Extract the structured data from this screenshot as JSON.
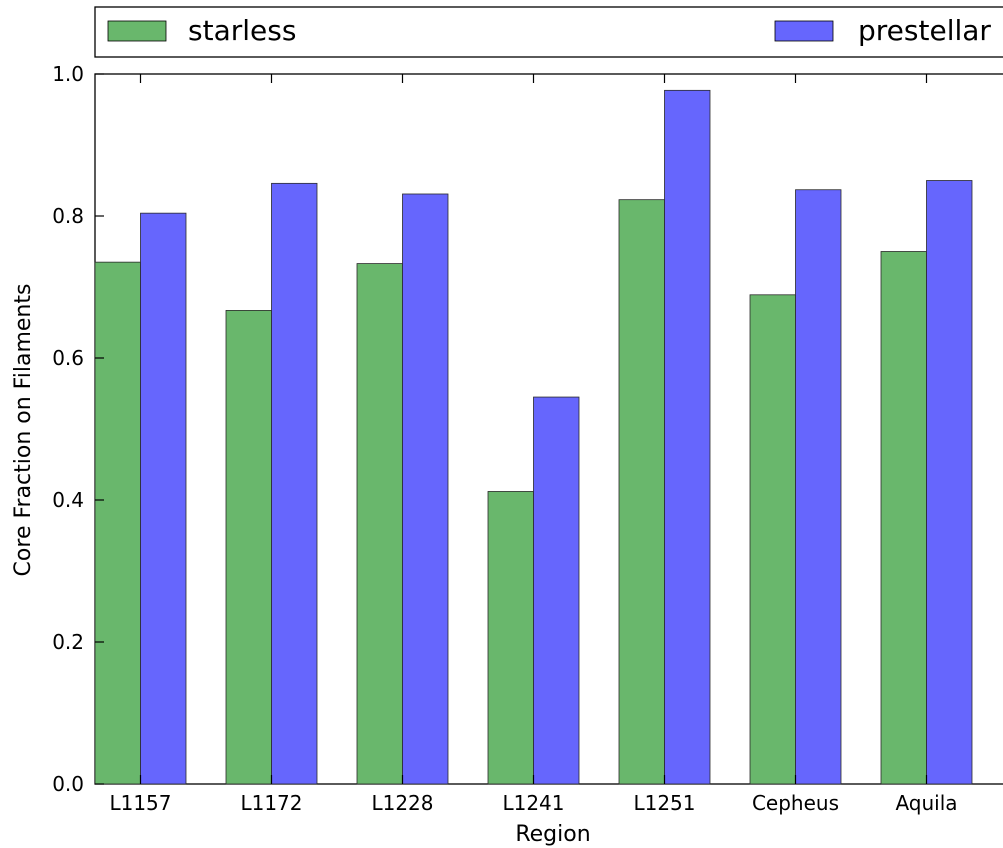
{
  "chart_data": {
    "type": "bar",
    "title": "",
    "xlabel": "Region",
    "ylabel": "Core Fraction on Filaments",
    "categories": [
      "L1157",
      "L1172",
      "L1228",
      "L1241",
      "L1251",
      "Cepheus",
      "Aquila"
    ],
    "series": [
      {
        "name": "starless",
        "color": "#69b76c",
        "values": [
          0.735,
          0.667,
          0.733,
          0.412,
          0.823,
          0.689,
          0.75
        ]
      },
      {
        "name": "prestellar",
        "color": "#6666fd",
        "values": [
          0.804,
          0.846,
          0.831,
          0.545,
          0.977,
          0.837,
          0.85
        ]
      }
    ],
    "ylim": [
      0,
      1.0
    ],
    "yticks": [
      "0.0",
      "0.2",
      "0.4",
      "0.6",
      "0.8",
      "1.0"
    ],
    "legend_position": "top",
    "grid": false
  }
}
